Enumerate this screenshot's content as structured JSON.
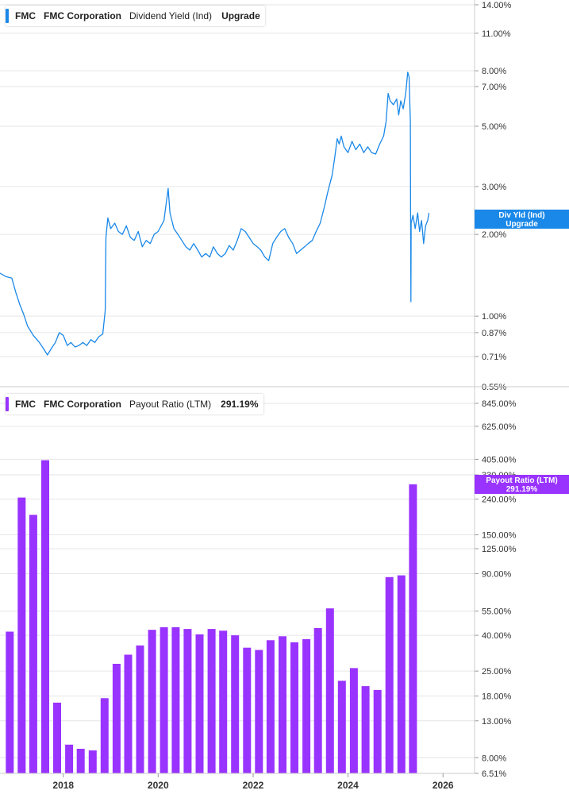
{
  "top_legend": {
    "ticker": "FMC",
    "company": "FMC Corporation",
    "metric": "Dividend Yield (Ind)",
    "value": "Upgrade"
  },
  "top_tag": {
    "line1": "Div Yld (Ind)",
    "line2": "Upgrade"
  },
  "bottom_legend": {
    "ticker": "FMC",
    "company": "FMC Corporation",
    "metric": "Payout Ratio (LTM)",
    "value": "291.19%"
  },
  "bottom_tag": {
    "line1": "Payout Ratio (LTM)",
    "line2": "291.19%"
  },
  "colors": {
    "line": "#1a88e8",
    "bar": "#9933ff",
    "grid": "#e6e6e6",
    "axis_text": "#333333"
  },
  "chart_data": [
    {
      "type": "line",
      "title": "Dividend Yield (Ind)",
      "scale": "log",
      "ylim": [
        0.55,
        14.0
      ],
      "xlim": [
        "2016-09-01",
        "2026-09-01"
      ],
      "ytick_labels": [
        "14.00%",
        "11.00%",
        "8.00%",
        "7.00%",
        "5.00%",
        "3.00%",
        "2.00%",
        "1.00%",
        "0.87%",
        "0.71%",
        "0.55%"
      ],
      "ytick_values": [
        14.0,
        11.0,
        8.0,
        7.0,
        5.0,
        3.0,
        2.0,
        1.0,
        0.87,
        0.71,
        0.55
      ],
      "series": [
        {
          "points": [
            [
              "2016-09-01",
              1.44
            ],
            [
              "2016-10-15",
              1.4
            ],
            [
              "2016-12-01",
              1.38
            ],
            [
              "2017-01-01",
              1.22
            ],
            [
              "2017-02-01",
              1.1
            ],
            [
              "2017-03-01",
              1.02
            ],
            [
              "2017-04-01",
              0.92
            ],
            [
              "2017-05-15",
              0.85
            ],
            [
              "2017-07-01",
              0.8
            ],
            [
              "2017-08-01",
              0.76
            ],
            [
              "2017-09-01",
              0.72
            ],
            [
              "2017-10-01",
              0.76
            ],
            [
              "2017-11-01",
              0.8
            ],
            [
              "2017-12-01",
              0.87
            ],
            [
              "2018-01-01",
              0.85
            ],
            [
              "2018-02-01",
              0.78
            ],
            [
              "2018-03-01",
              0.8
            ],
            [
              "2018-04-01",
              0.77
            ],
            [
              "2018-05-01",
              0.78
            ],
            [
              "2018-06-01",
              0.8
            ],
            [
              "2018-07-01",
              0.78
            ],
            [
              "2018-08-01",
              0.82
            ],
            [
              "2018-09-01",
              0.8
            ],
            [
              "2018-10-01",
              0.84
            ],
            [
              "2018-11-01",
              0.86
            ],
            [
              "2018-11-20",
              1.05
            ],
            [
              "2018-11-25",
              1.95
            ],
            [
              "2018-12-10",
              2.3
            ],
            [
              "2019-01-01",
              2.1
            ],
            [
              "2019-02-01",
              2.2
            ],
            [
              "2019-03-01",
              2.05
            ],
            [
              "2019-04-01",
              2.0
            ],
            [
              "2019-05-01",
              2.15
            ],
            [
              "2019-06-01",
              1.95
            ],
            [
              "2019-07-01",
              1.9
            ],
            [
              "2019-08-01",
              2.05
            ],
            [
              "2019-09-01",
              1.8
            ],
            [
              "2019-10-01",
              1.9
            ],
            [
              "2019-11-01",
              1.85
            ],
            [
              "2019-12-01",
              2.0
            ],
            [
              "2020-01-01",
              2.05
            ],
            [
              "2020-02-15",
              2.25
            ],
            [
              "2020-03-18",
              2.95
            ],
            [
              "2020-04-01",
              2.4
            ],
            [
              "2020-05-01",
              2.1
            ],
            [
              "2020-06-01",
              2.0
            ],
            [
              "2020-07-01",
              1.9
            ],
            [
              "2020-08-01",
              1.8
            ],
            [
              "2020-09-01",
              1.75
            ],
            [
              "2020-10-01",
              1.85
            ],
            [
              "2020-11-01",
              1.75
            ],
            [
              "2020-12-01",
              1.65
            ],
            [
              "2021-01-01",
              1.7
            ],
            [
              "2021-02-01",
              1.65
            ],
            [
              "2021-03-01",
              1.8
            ],
            [
              "2021-04-01",
              1.7
            ],
            [
              "2021-05-01",
              1.65
            ],
            [
              "2021-06-01",
              1.7
            ],
            [
              "2021-07-01",
              1.82
            ],
            [
              "2021-08-01",
              1.75
            ],
            [
              "2021-09-01",
              1.9
            ],
            [
              "2021-10-01",
              2.1
            ],
            [
              "2021-11-01",
              2.05
            ],
            [
              "2021-12-01",
              1.95
            ],
            [
              "2022-01-01",
              1.85
            ],
            [
              "2022-02-01",
              1.8
            ],
            [
              "2022-03-01",
              1.75
            ],
            [
              "2022-04-01",
              1.65
            ],
            [
              "2022-05-01",
              1.6
            ],
            [
              "2022-06-01",
              1.85
            ],
            [
              "2022-07-01",
              1.95
            ],
            [
              "2022-08-01",
              2.05
            ],
            [
              "2022-09-01",
              2.1
            ],
            [
              "2022-10-01",
              1.95
            ],
            [
              "2022-11-01",
              1.85
            ],
            [
              "2022-12-01",
              1.7
            ],
            [
              "2023-01-01",
              1.75
            ],
            [
              "2023-02-01",
              1.8
            ],
            [
              "2023-03-01",
              1.85
            ],
            [
              "2023-04-01",
              1.9
            ],
            [
              "2023-05-01",
              2.05
            ],
            [
              "2023-06-01",
              2.2
            ],
            [
              "2023-07-01",
              2.5
            ],
            [
              "2023-08-01",
              2.9
            ],
            [
              "2023-09-01",
              3.3
            ],
            [
              "2023-09-20",
              3.8
            ],
            [
              "2023-10-10",
              4.5
            ],
            [
              "2023-10-25",
              4.3
            ],
            [
              "2023-11-10",
              4.6
            ],
            [
              "2023-12-01",
              4.2
            ],
            [
              "2024-01-01",
              4.0
            ],
            [
              "2024-02-01",
              4.4
            ],
            [
              "2024-03-01",
              4.1
            ],
            [
              "2024-04-01",
              4.3
            ],
            [
              "2024-05-01",
              4.0
            ],
            [
              "2024-06-01",
              4.2
            ],
            [
              "2024-07-01",
              4.0
            ],
            [
              "2024-08-01",
              3.95
            ],
            [
              "2024-09-01",
              4.3
            ],
            [
              "2024-10-01",
              4.6
            ],
            [
              "2024-10-20",
              5.2
            ],
            [
              "2024-11-05",
              6.6
            ],
            [
              "2024-11-20",
              6.2
            ],
            [
              "2024-12-15",
              6.0
            ],
            [
              "2025-01-10",
              6.3
            ],
            [
              "2025-01-25",
              5.5
            ],
            [
              "2025-02-10",
              6.2
            ],
            [
              "2025-03-01",
              5.8
            ],
            [
              "2025-03-20",
              6.6
            ],
            [
              "2025-04-05",
              7.9
            ],
            [
              "2025-04-15",
              7.6
            ],
            [
              "2025-04-25",
              5.2
            ],
            [
              "2025-04-27",
              2.4
            ],
            [
              "2025-04-29",
              1.13
            ],
            [
              "2025-05-01",
              2.2
            ],
            [
              "2025-05-15",
              2.35
            ],
            [
              "2025-06-01",
              2.1
            ],
            [
              "2025-06-20",
              2.4
            ],
            [
              "2025-07-05",
              2.05
            ],
            [
              "2025-07-20",
              2.25
            ],
            [
              "2025-08-05",
              1.85
            ],
            [
              "2025-08-20",
              2.15
            ],
            [
              "2025-09-05",
              2.25
            ],
            [
              "2025-09-15",
              2.4
            ]
          ]
        }
      ]
    },
    {
      "type": "bar",
      "title": "Payout Ratio (LTM)",
      "scale": "log",
      "ylim": [
        6.51,
        845.0
      ],
      "ytick_labels": [
        "845.00%",
        "625.00%",
        "405.00%",
        "330.00%",
        "240.00%",
        "150.00%",
        "125.00%",
        "90.00%",
        "55.00%",
        "40.00%",
        "25.00%",
        "18.00%",
        "13.00%",
        "8.00%",
        "6.51%"
      ],
      "ytick_values": [
        845,
        625,
        405,
        330,
        240,
        150,
        125,
        90,
        55,
        40,
        25,
        18,
        13,
        8,
        6.51
      ],
      "x_ticks": [
        "2018",
        "2020",
        "2022",
        "2024",
        "2026"
      ],
      "categories": [
        "2016-Q4",
        "2017-Q1",
        "2017-Q2",
        "2017-Q3",
        "2017-Q4",
        "2018-Q1",
        "2018-Q2",
        "2018-Q3",
        "2018-Q4",
        "2019-Q1",
        "2019-Q2",
        "2019-Q3",
        "2019-Q4",
        "2020-Q1",
        "2020-Q2",
        "2020-Q3",
        "2020-Q4",
        "2021-Q1",
        "2021-Q2",
        "2021-Q3",
        "2021-Q4",
        "2022-Q1",
        "2022-Q2",
        "2022-Q3",
        "2022-Q4",
        "2023-Q1",
        "2023-Q2",
        "2023-Q3",
        "2023-Q4",
        "2024-Q1",
        "2024-Q2",
        "2024-Q3",
        "2024-Q4",
        "2025-Q1",
        "2025-Q2"
      ],
      "values": [
        42,
        245,
        195,
        400,
        16.5,
        9.5,
        9.0,
        8.8,
        17.5,
        27.5,
        31,
        35,
        43,
        44.5,
        44.5,
        43.5,
        40.5,
        43.5,
        42.5,
        40,
        34,
        33,
        37.5,
        39.5,
        36.5,
        38,
        44,
        57,
        22,
        26,
        20.5,
        19.5,
        86,
        88,
        291.19
      ]
    }
  ]
}
